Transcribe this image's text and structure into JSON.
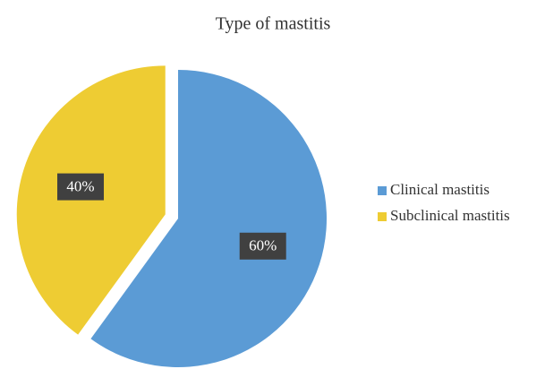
{
  "chart_data": {
    "type": "pie",
    "title": "Type of mastitis",
    "categories": [
      "Clinical mastitis",
      "Subclinical mastitis"
    ],
    "values": [
      60,
      40
    ],
    "value_labels": [
      "60%",
      "40%"
    ],
    "colors": [
      "#5b9bd5",
      "#eecc33"
    ],
    "legend": "right"
  }
}
